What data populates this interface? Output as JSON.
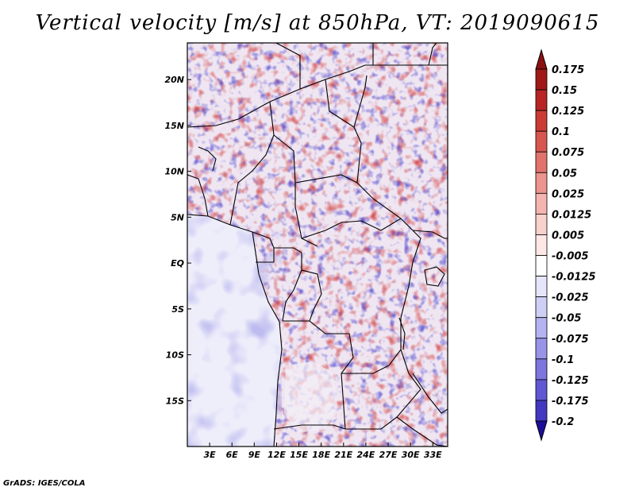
{
  "title": "Vertical velocity [m/s] at 850hPa, VT: 2019090615",
  "credit": "GrADS: IGES/COLA",
  "map": {
    "lon_range": [
      0,
      35
    ],
    "lat_range": [
      -20,
      24
    ],
    "lon_ticks": [
      {
        "value": 3,
        "label": "3E"
      },
      {
        "value": 6,
        "label": "6E"
      },
      {
        "value": 9,
        "label": "9E"
      },
      {
        "value": 12,
        "label": "12E"
      },
      {
        "value": 15,
        "label": "15E"
      },
      {
        "value": 18,
        "label": "18E"
      },
      {
        "value": 21,
        "label": "21E"
      },
      {
        "value": 24,
        "label": "24E"
      },
      {
        "value": 27,
        "label": "27E"
      },
      {
        "value": 30,
        "label": "30E"
      },
      {
        "value": 33,
        "label": "33E"
      }
    ],
    "lat_ticks": [
      {
        "value": 20,
        "label": "20N"
      },
      {
        "value": 15,
        "label": "15N"
      },
      {
        "value": 10,
        "label": "10N"
      },
      {
        "value": 5,
        "label": "5N"
      },
      {
        "value": 0,
        "label": "EQ"
      },
      {
        "value": -5,
        "label": "5S"
      },
      {
        "value": -10,
        "label": "10S"
      },
      {
        "value": -15,
        "label": "15S"
      }
    ]
  },
  "colorbar": {
    "levels": [
      {
        "label": "0.175",
        "color": "#a01818"
      },
      {
        "label": "0.15",
        "color": "#b82424"
      },
      {
        "label": "0.125",
        "color": "#cc3a36"
      },
      {
        "label": "0.1",
        "color": "#d85650"
      },
      {
        "label": "0.075",
        "color": "#e2736c"
      },
      {
        "label": "0.05",
        "color": "#ec948e"
      },
      {
        "label": "0.025",
        "color": "#f4b5b0"
      },
      {
        "label": "0.0125",
        "color": "#f8d0cc"
      },
      {
        "label": "0.005",
        "color": "#fde8e6"
      },
      {
        "label": "-0.005",
        "color": "#ffffff"
      },
      {
        "label": "-0.0125",
        "color": "#e6e6fa"
      },
      {
        "label": "-0.025",
        "color": "#cfcff6"
      },
      {
        "label": "-0.05",
        "color": "#b4b2f0"
      },
      {
        "label": "-0.075",
        "color": "#9894e8"
      },
      {
        "label": "-0.1",
        "color": "#7c76de"
      },
      {
        "label": "-0.125",
        "color": "#5f58d2"
      },
      {
        "label": "-0.175",
        "color": "#4238c2"
      },
      {
        "label": "-0.2",
        "color": "#2a1eaa"
      }
    ],
    "top_cap_color": "#8c1010",
    "bottom_cap_color": "#1c0e98"
  }
}
